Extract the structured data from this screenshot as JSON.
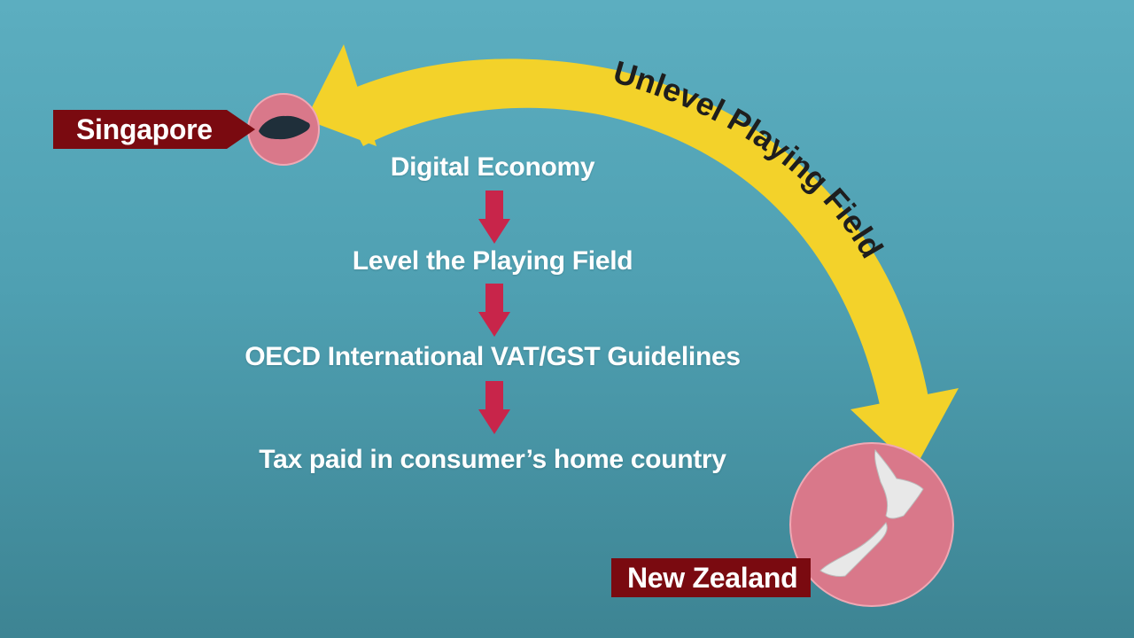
{
  "colors": {
    "background_top": "#5caec0",
    "background_bottom": "#3d8493",
    "arrow_yellow": "#f3d22a",
    "flow_arrow_red": "#c8254a",
    "label_banner": "#7a0a10",
    "country_circle": "#d9788a"
  },
  "curved_arrow": {
    "label": "Unlevel Playing Field"
  },
  "countries": {
    "origin": {
      "name": "Singapore",
      "icon": "singapore-map-icon"
    },
    "destination": {
      "name": "New Zealand",
      "icon": "new-zealand-map-icon"
    }
  },
  "flow": {
    "steps": [
      "Digital Economy",
      "Level the Playing Field",
      "OECD International VAT/GST Guidelines",
      "Tax paid in consumer’s home country"
    ],
    "connector_icon": "arrow-down-icon"
  }
}
